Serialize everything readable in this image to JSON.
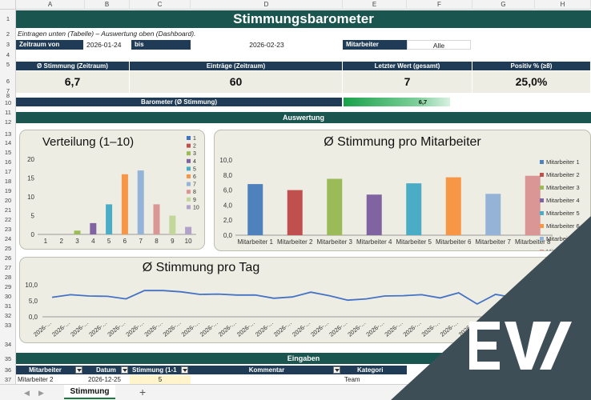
{
  "sheet": {
    "columns": [
      "A",
      "B",
      "C",
      "D",
      "E",
      "F",
      "G",
      "H"
    ],
    "rows": [
      "1",
      "2",
      "3",
      "4",
      "5",
      "6",
      "7",
      "8",
      "9",
      "10",
      "11",
      "12",
      "13",
      "14",
      "15",
      "16",
      "17",
      "18",
      "19",
      "20",
      "21",
      "22",
      "23",
      "24",
      "25",
      "26",
      "27",
      "28",
      "29",
      "30",
      "31",
      "32",
      "33",
      "34",
      "35",
      "36",
      "37"
    ]
  },
  "title": "Stimmungsbarometer",
  "subtitle": "Eintragen unten (Tabelle) – Auswertung oben (Dashboard).",
  "filters": {
    "from_label": "Zeitraum von",
    "from_value": "2026-01-24",
    "to_label": "bis",
    "to_value": "2026-02-23",
    "employee_label": "Mitarbeiter",
    "employee_value": "Alle"
  },
  "kpis": [
    {
      "label": "Ø Stimmung (Zeitraum)",
      "value": "6,7"
    },
    {
      "label": "Einträge (Zeitraum)",
      "value": "60"
    },
    {
      "label": "Letzter Wert (gesamt)",
      "value": "7"
    },
    {
      "label": "Positiv % (≥8)",
      "value": "25,0%"
    }
  ],
  "barometer": {
    "label": "Barometer (Ø Stimmung)",
    "value_text": "6,7",
    "fraction": 0.67
  },
  "section_analysis": "Auswertung",
  "section_input": "Eingaben",
  "charts": {
    "distribution_title": "Verteilung (1–10)",
    "employee_title": "Ø Stimmung pro Mitarbeiter",
    "day_title": "Ø Stimmung pro Tag"
  },
  "chart_data": [
    {
      "type": "bar",
      "title": "Verteilung (1–10)",
      "categories": [
        "1",
        "2",
        "3",
        "4",
        "5",
        "6",
        "7",
        "8",
        "9",
        "10"
      ],
      "values": [
        0,
        0,
        1,
        3,
        8,
        16,
        17,
        8,
        5,
        2
      ],
      "ylim": [
        0,
        20
      ],
      "yticks": [
        "0",
        "5",
        "10",
        "15",
        "20"
      ],
      "colors": [
        "#4472c4",
        "#c0504d",
        "#9bbb59",
        "#8064a2",
        "#4bacc6",
        "#f79646",
        "#95b3d7",
        "#d99694",
        "#c3d69b",
        "#b3a2c7"
      ],
      "legend": [
        "1",
        "2",
        "3",
        "4",
        "5",
        "6",
        "7",
        "8",
        "9",
        "10"
      ],
      "legend_position": "right"
    },
    {
      "type": "bar",
      "title": "Ø Stimmung pro Mitarbeiter",
      "categories": [
        "Mitarbeiter 1",
        "Mitarbeiter 2",
        "Mitarbeiter 3",
        "Mitarbeiter 4",
        "Mitarbeiter 5",
        "Mitarbeiter 6",
        "Mitarbeiter 7",
        "Mitarbeiter 8"
      ],
      "values": [
        6.8,
        6.0,
        7.5,
        5.4,
        6.9,
        7.7,
        5.5,
        7.9
      ],
      "ylim": [
        0,
        10
      ],
      "yticks": [
        "0,0",
        "2,0",
        "4,0",
        "6,0",
        "8,0",
        "10,0"
      ],
      "colors": [
        "#4f81bd",
        "#c0504d",
        "#9bbb59",
        "#8064a2",
        "#4bacc6",
        "#f79646",
        "#95b3d7",
        "#d99694"
      ],
      "legend": [
        "Mitarbeiter 1",
        "Mitarbeiter 2",
        "Mitarbeiter 3",
        "Mitarbeiter 4",
        "Mitarbeiter 5",
        "Mitarbeiter 6",
        "Mitarbeiter 7",
        "Mitarbeiter 8"
      ],
      "legend_position": "right"
    },
    {
      "type": "line",
      "title": "Ø Stimmung pro Tag",
      "ylim": [
        0,
        10
      ],
      "yticks": [
        "0,0",
        "5,0",
        "10,0"
      ],
      "x_tick_label": "2026-…",
      "values": [
        6.1,
        6.9,
        6.5,
        6.4,
        5.6,
        8.2,
        8.2,
        7.8,
        7.0,
        7.1,
        6.8,
        6.8,
        5.8,
        6.2,
        7.7,
        6.6,
        5.2,
        5.6,
        6.5,
        6.6,
        6.9,
        5.9,
        7.5,
        4.0,
        7.0,
        6.0,
        6.8
      ],
      "color": "#4472c4"
    }
  ],
  "table": {
    "headers": [
      "Mitarbeiter",
      "Datum",
      "Stimmung (1-1",
      "Kommentar",
      "Kategori"
    ],
    "first_row": [
      "Mitarbeiter 2",
      "2026-12-25",
      "5",
      "",
      "Team"
    ]
  },
  "tabs": {
    "active": "Stimmung",
    "add": "+"
  },
  "nav": {
    "prev": "◀",
    "next": "▶"
  }
}
